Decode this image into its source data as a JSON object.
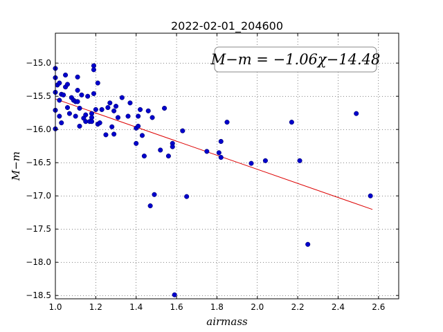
{
  "chart_data": {
    "type": "scatter",
    "title": "2022-02-01_204600",
    "xlabel": "airmass",
    "ylabel": "M−m",
    "xlim": [
      1.0,
      2.7
    ],
    "ylim": [
      -18.55,
      -14.55
    ],
    "xticks": [
      1.0,
      1.2,
      1.4,
      1.6,
      1.8,
      2.0,
      2.2,
      2.4,
      2.6
    ],
    "xtick_labels": [
      "1.0",
      "1.2",
      "1.4",
      "1.6",
      "1.8",
      "2.0",
      "2.2",
      "2.4",
      "2.6"
    ],
    "yticks": [
      -15.0,
      -15.5,
      -16.0,
      -16.5,
      -17.0,
      -17.5,
      -18.0,
      -18.5
    ],
    "ytick_labels": [
      "−15.0",
      "−15.5",
      "−16.0",
      "−16.5",
      "−17.0",
      "−17.5",
      "−18.0",
      "−18.5"
    ],
    "grid": true,
    "annotation": "M−m = −1.06χ−14.48",
    "point_color": "#0000cc",
    "fit_color": "#dd0000",
    "fit": {
      "slope": -1.06,
      "intercept": -14.48,
      "x_range": [
        1.0,
        2.57
      ]
    },
    "points": [
      [
        1.0,
        -15.08
      ],
      [
        1.0,
        -15.22
      ],
      [
        1.0,
        -15.44
      ],
      [
        1.0,
        -15.71
      ],
      [
        1.0,
        -15.99
      ],
      [
        1.01,
        -15.33
      ],
      [
        1.02,
        -15.3
      ],
      [
        1.02,
        -15.56
      ],
      [
        1.02,
        -15.8
      ],
      [
        1.03,
        -15.9
      ],
      [
        1.03,
        -15.47
      ],
      [
        1.04,
        -15.48
      ],
      [
        1.05,
        -15.18
      ],
      [
        1.05,
        -15.36
      ],
      [
        1.06,
        -15.32
      ],
      [
        1.06,
        -15.67
      ],
      [
        1.07,
        -15.76
      ],
      [
        1.08,
        -15.52
      ],
      [
        1.09,
        -15.56
      ],
      [
        1.1,
        -15.58
      ],
      [
        1.1,
        -15.8
      ],
      [
        1.11,
        -15.21
      ],
      [
        1.11,
        -15.41
      ],
      [
        1.11,
        -15.58
      ],
      [
        1.12,
        -15.68
      ],
      [
        1.12,
        -15.95
      ],
      [
        1.13,
        -15.48
      ],
      [
        1.14,
        -15.83
      ],
      [
        1.15,
        -15.88
      ],
      [
        1.15,
        -15.78
      ],
      [
        1.16,
        -15.5
      ],
      [
        1.17,
        -15.88
      ],
      [
        1.18,
        -15.76
      ],
      [
        1.18,
        -15.82
      ],
      [
        1.18,
        -15.88
      ],
      [
        1.19,
        -15.04
      ],
      [
        1.19,
        -15.1
      ],
      [
        1.19,
        -15.46
      ],
      [
        1.2,
        -15.7
      ],
      [
        1.21,
        -15.92
      ],
      [
        1.21,
        -15.3
      ],
      [
        1.22,
        -15.9
      ],
      [
        1.23,
        -15.7
      ],
      [
        1.25,
        -16.08
      ],
      [
        1.26,
        -15.67
      ],
      [
        1.27,
        -15.6
      ],
      [
        1.28,
        -15.96
      ],
      [
        1.29,
        -16.07
      ],
      [
        1.29,
        -15.72
      ],
      [
        1.3,
        -15.65
      ],
      [
        1.31,
        -15.82
      ],
      [
        1.33,
        -15.52
      ],
      [
        1.36,
        -15.8
      ],
      [
        1.37,
        -15.6
      ],
      [
        1.4,
        -15.98
      ],
      [
        1.4,
        -16.21
      ],
      [
        1.41,
        -15.95
      ],
      [
        1.41,
        -15.8
      ],
      [
        1.42,
        -15.7
      ],
      [
        1.43,
        -16.09
      ],
      [
        1.44,
        -16.4
      ],
      [
        1.46,
        -15.72
      ],
      [
        1.47,
        -17.15
      ],
      [
        1.48,
        -15.82
      ],
      [
        1.49,
        -16.98
      ],
      [
        1.52,
        -16.31
      ],
      [
        1.54,
        -15.68
      ],
      [
        1.56,
        -16.4
      ],
      [
        1.58,
        -16.21
      ],
      [
        1.58,
        -16.26
      ],
      [
        1.59,
        -18.49
      ],
      [
        1.63,
        -16.02
      ],
      [
        1.65,
        -17.01
      ],
      [
        1.75,
        -16.33
      ],
      [
        1.81,
        -16.35
      ],
      [
        1.82,
        -16.18
      ],
      [
        1.82,
        -16.42
      ],
      [
        1.85,
        -15.89
      ],
      [
        1.97,
        -16.51
      ],
      [
        2.04,
        -16.47
      ],
      [
        2.17,
        -15.89
      ],
      [
        2.21,
        -16.47
      ],
      [
        2.25,
        -17.73
      ],
      [
        2.49,
        -15.76
      ],
      [
        2.56,
        -17.0
      ]
    ]
  }
}
